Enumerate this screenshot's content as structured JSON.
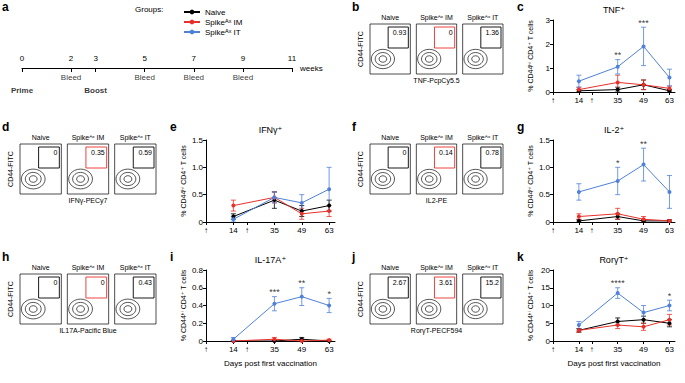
{
  "chart_data": [
    {
      "type": "timeline",
      "panel": "a",
      "x_label": "weeks",
      "xlim": [
        0,
        11
      ],
      "xticks": [
        0,
        2,
        3,
        5,
        7,
        9,
        11
      ],
      "bleeds": [
        {
          "x": 2,
          "label": "Bleed"
        },
        {
          "x": 5,
          "label": "Bleed"
        },
        {
          "x": 7,
          "label": "Bleed"
        },
        {
          "x": 9,
          "label": "Bleed"
        }
      ],
      "vaccinations": [
        {
          "x": 0,
          "label": "Prime"
        },
        {
          "x": 3,
          "label": "Boost"
        }
      ],
      "legend_title": "Groups:",
      "groups": [
        {
          "name": "Naive",
          "color": "#000000"
        },
        {
          "name": "Spikeᴬˣ IM",
          "color": "#e8302a"
        },
        {
          "name": "Spikeᴬˣ IT",
          "color": "#4f81d9"
        }
      ]
    },
    {
      "type": "flow",
      "panel": "b",
      "y_label": "CD44-FITC",
      "x_label": "TNF-PcpCy5.5",
      "panels": [
        "Naive",
        "Spikeᴬˣ IM",
        "Spikeᴬˣ IT"
      ],
      "values": [
        0.93,
        0,
        1.36
      ],
      "colors": [
        "#000000",
        "#e8302a",
        "#000000"
      ]
    },
    {
      "type": "line",
      "panel": "c",
      "title": "TNF⁺",
      "y_label": "% CD44ʰⁱ CD4⁺ T cells",
      "x": [
        14,
        35,
        49,
        63
      ],
      "xlim": [
        0,
        66
      ],
      "xticks": [
        {
          "value": 0,
          "label": "↑"
        },
        14,
        {
          "value": 21,
          "label": "↑"
        },
        35,
        49,
        63
      ],
      "ylim": [
        0,
        3
      ],
      "yticks": [
        0,
        1,
        2,
        3
      ],
      "grid": false,
      "marker": "circle",
      "series": [
        {
          "name": "Naive",
          "color": "#000000",
          "values": [
            0.05,
            0.1,
            0.3,
            0.05
          ],
          "errors": [
            0.05,
            0.1,
            0.2,
            0.05
          ]
        },
        {
          "name": "Spikeᴬˣ IM",
          "color": "#e8302a",
          "values": [
            0.1,
            0.4,
            0.3,
            0.15
          ],
          "errors": [
            0.1,
            0.3,
            0.2,
            0.1
          ]
        },
        {
          "name": "Spikeᴬˣ IT",
          "color": "#4f81d9",
          "values": [
            0.45,
            1.05,
            1.9,
            0.6
          ],
          "errors": [
            0.25,
            0.3,
            0.8,
            0.35
          ]
        }
      ],
      "annotations": [
        {
          "x": 35,
          "text": "**"
        },
        {
          "x": 49,
          "text": "***"
        }
      ]
    },
    {
      "type": "flow",
      "panel": "d",
      "y_label": "CD44-FITC",
      "x_label": "IFNγ-PECy7",
      "panels": [
        "Naive",
        "Spikeᴬˣ IM",
        "Spikeᴬˣ IT"
      ],
      "values": [
        0,
        0.35,
        0.59
      ],
      "colors": [
        "#000000",
        "#e8302a",
        "#000000"
      ]
    },
    {
      "type": "line",
      "panel": "e",
      "title": "IFNγ⁺",
      "y_label": "% CD44ʰⁱ CD4⁺ T cells",
      "x": [
        14,
        35,
        49,
        63
      ],
      "xlim": [
        0,
        66
      ],
      "xticks": [
        {
          "value": 0,
          "label": "↑"
        },
        14,
        {
          "value": 21,
          "label": "↑"
        },
        35,
        49,
        63
      ],
      "ylim": [
        0,
        1.5
      ],
      "yticks": [
        0,
        0.5,
        {
          "value": 1,
          "label": "1.0"
        },
        1.5
      ],
      "grid": false,
      "marker": "circle",
      "series": [
        {
          "name": "Naive",
          "color": "#000000",
          "values": [
            0.1,
            0.4,
            0.2,
            0.3
          ],
          "errors": [
            0.05,
            0.15,
            0.1,
            0.1
          ]
        },
        {
          "name": "Spikeᴬˣ IM",
          "color": "#e8302a",
          "values": [
            0.3,
            0.45,
            0.15,
            0.2
          ],
          "errors": [
            0.1,
            0.1,
            0.1,
            0.1
          ]
        },
        {
          "name": "Spikeᴬˣ IT",
          "color": "#4f81d9",
          "values": [
            0.05,
            0.45,
            0.35,
            0.6
          ],
          "errors": [
            0.05,
            0.1,
            0.15,
            0.4
          ]
        }
      ],
      "annotations": []
    },
    {
      "type": "flow",
      "panel": "f",
      "y_label": "CD44-FITC",
      "x_label": "IL2-PE",
      "panels": [
        "Naive",
        "Spikeᴬˣ IM",
        "Spikeᴬˣ IT"
      ],
      "values": [
        0,
        0.14,
        0.78
      ],
      "colors": [
        "#000000",
        "#e8302a",
        "#000000"
      ]
    },
    {
      "type": "line",
      "panel": "g",
      "title": "IL-2⁺",
      "y_label": "% CD44ʰⁱ CD4⁺ T cells",
      "x": [
        14,
        35,
        49,
        63
      ],
      "xlim": [
        0,
        66
      ],
      "xticks": [
        {
          "value": 0,
          "label": "↑"
        },
        14,
        {
          "value": 21,
          "label": "↑"
        },
        35,
        49,
        63
      ],
      "ylim": [
        0,
        1.5
      ],
      "yticks": [
        0,
        0.5,
        {
          "value": 1,
          "label": "1.0"
        },
        1.5
      ],
      "grid": false,
      "marker": "circle",
      "series": [
        {
          "name": "Naive",
          "color": "#000000",
          "values": [
            0.02,
            0.1,
            0.02,
            0.02
          ],
          "errors": [
            0.02,
            0.05,
            0.02,
            0.02
          ]
        },
        {
          "name": "Spikeᴬˣ IM",
          "color": "#e8302a",
          "values": [
            0.1,
            0.15,
            0.05,
            0.02
          ],
          "errors": [
            0.05,
            0.1,
            0.05,
            0.02
          ]
        },
        {
          "name": "Spikeᴬˣ IT",
          "color": "#4f81d9",
          "values": [
            0.55,
            0.75,
            1.05,
            0.55
          ],
          "errors": [
            0.15,
            0.25,
            0.3,
            0.3
          ]
        }
      ],
      "annotations": [
        {
          "x": 35,
          "text": "*"
        },
        {
          "x": 49,
          "text": "**"
        }
      ]
    },
    {
      "type": "flow",
      "panel": "h",
      "y_label": "CD44-FITC",
      "x_label": "IL17A-Pacific Blue",
      "panels": [
        "Naive",
        "Spikeᴬˣ IM",
        "Spikeᴬˣ IT"
      ],
      "values": [
        0,
        0,
        0.43
      ],
      "colors": [
        "#000000",
        "#e8302a",
        "#000000"
      ]
    },
    {
      "type": "line",
      "panel": "i",
      "title": "IL-17A⁺",
      "y_label": "% CD44ʰⁱ CD4⁺ T cells",
      "x_label": "Days post first vaccination",
      "x": [
        14,
        35,
        49,
        63
      ],
      "xlim": [
        0,
        66
      ],
      "xticks": [
        {
          "value": 0,
          "label": "↑"
        },
        14,
        {
          "value": 21,
          "label": "↑"
        },
        35,
        49,
        63
      ],
      "ylim": [
        0,
        0.8
      ],
      "yticks": [
        0,
        0.2,
        0.4,
        0.6,
        0.8
      ],
      "grid": false,
      "marker": "circle",
      "series": [
        {
          "name": "Naive",
          "color": "#000000",
          "values": [
            0,
            0,
            0.02,
            0
          ],
          "errors": [
            0,
            0,
            0.02,
            0
          ]
        },
        {
          "name": "Spikeᴬˣ IM",
          "color": "#e8302a",
          "values": [
            0,
            0.02,
            0,
            0.01
          ],
          "errors": [
            0,
            0.02,
            0,
            0.01
          ]
        },
        {
          "name": "Spikeᴬˣ IT",
          "color": "#4f81d9",
          "values": [
            0.02,
            0.42,
            0.5,
            0.4
          ],
          "errors": [
            0.02,
            0.08,
            0.1,
            0.08
          ]
        }
      ],
      "annotations": [
        {
          "x": 35,
          "text": "***"
        },
        {
          "x": 49,
          "text": "**"
        },
        {
          "x": 63,
          "text": "*"
        }
      ]
    },
    {
      "type": "flow",
      "panel": "j",
      "y_label": "CD44-FITC",
      "x_label": "RorγT-PECF594",
      "panels": [
        "Naive",
        "Spikeᴬˣ IM",
        "Spikeᴬˣ IT"
      ],
      "values": [
        2.67,
        3.61,
        15.2
      ],
      "colors": [
        "#000000",
        "#e8302a",
        "#000000"
      ]
    },
    {
      "type": "line",
      "panel": "k",
      "title": "RorγT⁺",
      "y_label": "% CD44ʰⁱ CD4⁺ T cells",
      "x_label": "Days post first vaccination",
      "x": [
        14,
        35,
        49,
        63
      ],
      "xlim": [
        0,
        66
      ],
      "xticks": [
        {
          "value": 0,
          "label": "↑"
        },
        14,
        {
          "value": 21,
          "label": "↑"
        },
        35,
        49,
        63
      ],
      "ylim": [
        0,
        20
      ],
      "yticks": [
        0,
        5,
        10,
        15,
        20
      ],
      "grid": false,
      "marker": "circle",
      "series": [
        {
          "name": "Naive",
          "color": "#000000",
          "values": [
            3,
            5.5,
            6,
            5
          ],
          "errors": [
            0.5,
            1,
            1,
            1
          ]
        },
        {
          "name": "Spikeᴬˣ IM",
          "color": "#e8302a",
          "values": [
            3,
            4.5,
            4,
            6
          ],
          "errors": [
            0.5,
            1,
            1,
            1.5
          ]
        },
        {
          "name": "Spikeᴬˣ IT",
          "color": "#4f81d9",
          "values": [
            4.5,
            13.5,
            8,
            10
          ],
          "errors": [
            1,
            1.5,
            2,
            1.5
          ]
        }
      ],
      "annotations": [
        {
          "x": 35,
          "text": "****"
        },
        {
          "x": 63,
          "text": "*"
        }
      ]
    }
  ]
}
